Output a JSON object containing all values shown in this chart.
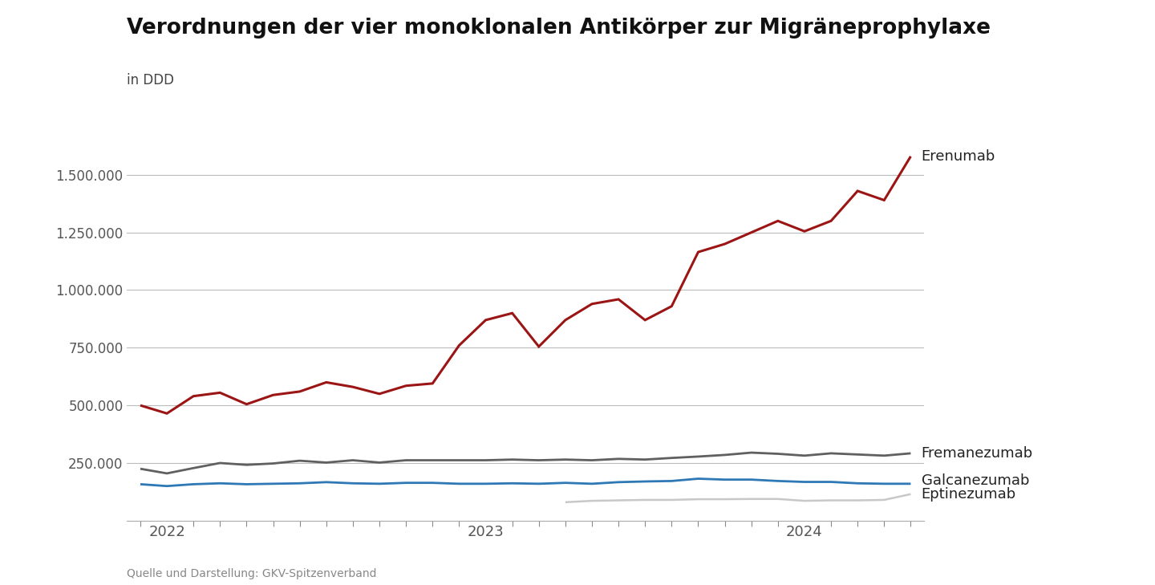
{
  "title": "Verordnungen der vier monoklonalen Antikörper zur Migräneprophylaxe",
  "subtitle": "in DDD",
  "source": "Quelle und Darstellung: GKV-Spitzenverband",
  "background_color": "#ffffff",
  "series": {
    "Erenumab": {
      "color": "#9B1515",
      "linewidth": 2.2,
      "values": [
        500000,
        465000,
        540000,
        555000,
        505000,
        545000,
        560000,
        600000,
        580000,
        550000,
        585000,
        595000,
        760000,
        870000,
        900000,
        755000,
        870000,
        940000,
        960000,
        870000,
        930000,
        1165000,
        1200000,
        1250000,
        1300000,
        1255000,
        1300000,
        1430000,
        1390000,
        1580000
      ]
    },
    "Fremanezumab": {
      "color": "#606060",
      "linewidth": 2.0,
      "values": [
        225000,
        205000,
        228000,
        250000,
        242000,
        248000,
        260000,
        252000,
        262000,
        252000,
        262000,
        262000,
        262000,
        262000,
        265000,
        262000,
        265000,
        262000,
        268000,
        265000,
        272000,
        278000,
        285000,
        295000,
        290000,
        282000,
        292000,
        287000,
        282000,
        292000
      ]
    },
    "Galcanezumab": {
      "color": "#2E78B5",
      "linewidth": 2.0,
      "values": [
        158000,
        150000,
        158000,
        162000,
        158000,
        160000,
        162000,
        167000,
        162000,
        160000,
        164000,
        164000,
        160000,
        160000,
        162000,
        160000,
        164000,
        160000,
        167000,
        170000,
        172000,
        182000,
        178000,
        178000,
        172000,
        168000,
        168000,
        162000,
        160000,
        160000
      ]
    },
    "Eptinezumab": {
      "color": "#C8C8C8",
      "linewidth": 1.8,
      "values": [
        null,
        null,
        null,
        null,
        null,
        null,
        null,
        null,
        null,
        null,
        null,
        null,
        null,
        null,
        null,
        null,
        80000,
        86000,
        88000,
        90000,
        90000,
        93000,
        93000,
        94000,
        94000,
        86000,
        88000,
        88000,
        90000,
        115000
      ]
    }
  },
  "ylim": [
    0,
    1700000
  ],
  "yticks": [
    250000,
    500000,
    750000,
    1000000,
    1250000,
    1500000
  ],
  "ytick_labels": [
    "250.000",
    "500.000",
    "750.000",
    "1.000.000",
    "1.250.000",
    "1.500.000"
  ],
  "n_points": 30,
  "xtick_positions": [
    1,
    13,
    25
  ],
  "xtick_labels": [
    "2022",
    "2023",
    "2024"
  ],
  "label_fontsize": 13,
  "tick_fontsize": 12,
  "source_fontsize": 10,
  "title_fontsize": 19,
  "subtitle_fontsize": 12,
  "grid_color": "#bbbbbb"
}
